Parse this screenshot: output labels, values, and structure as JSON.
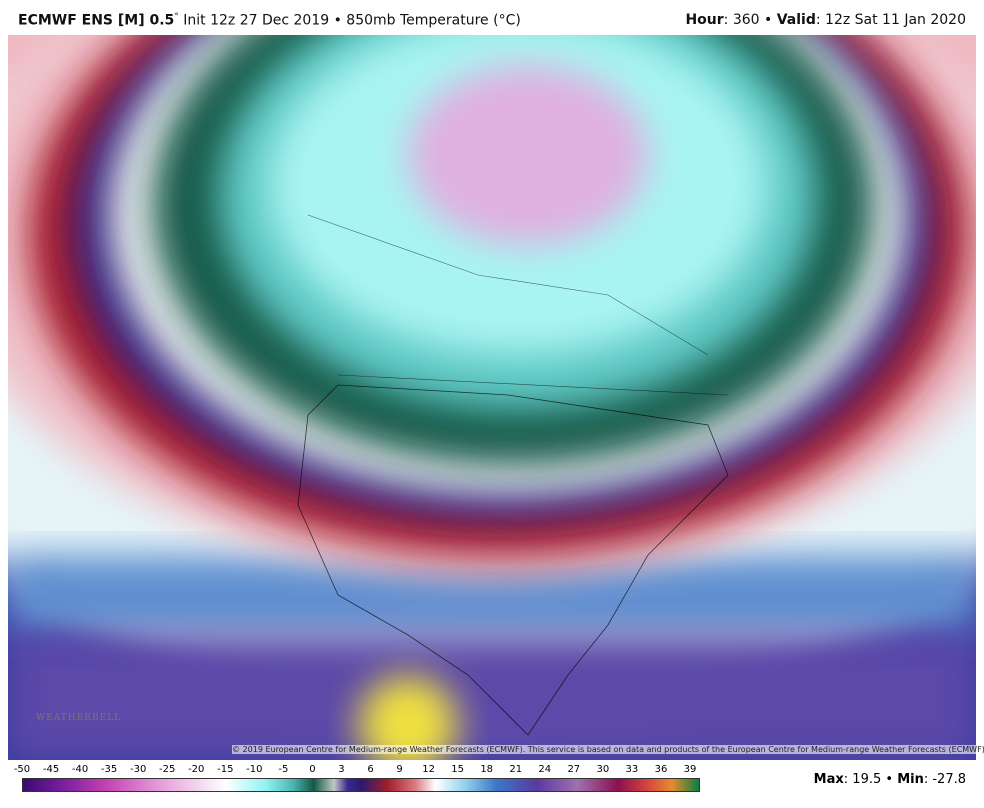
{
  "header": {
    "model": "ECMWF ENS [M] 0.5",
    "degree": "°",
    "init": "Init 12z 27 Dec 2019 • 850mb Temperature (°C)",
    "hour_label": "Hour",
    "hour_value": ": 360 •",
    "valid_label": "Valid",
    "valid_value": ": 12z Sat 11 Jan 2020"
  },
  "map": {
    "copyright": "© 2019 European Centre for Medium-range Weather Forecasts (ECMWF). This service is based on data and products of the European Centre for Medium-range Weather Forecasts (ECMWF).",
    "logo": "WEATHERBELL"
  },
  "colorbar": {
    "labels": [
      "-50",
      "-45",
      "-40",
      "-35",
      "-30",
      "-25",
      "-20",
      "-15",
      "-10",
      "-5",
      "0",
      "3",
      "6",
      "9",
      "12",
      "15",
      "18",
      "21",
      "24",
      "27",
      "30",
      "33",
      "36",
      "39"
    ]
  },
  "footer": {
    "max_label": "Max",
    "max_value": ": 19.5 •",
    "min_label": "Min",
    "min_value": ": -27.8"
  }
}
